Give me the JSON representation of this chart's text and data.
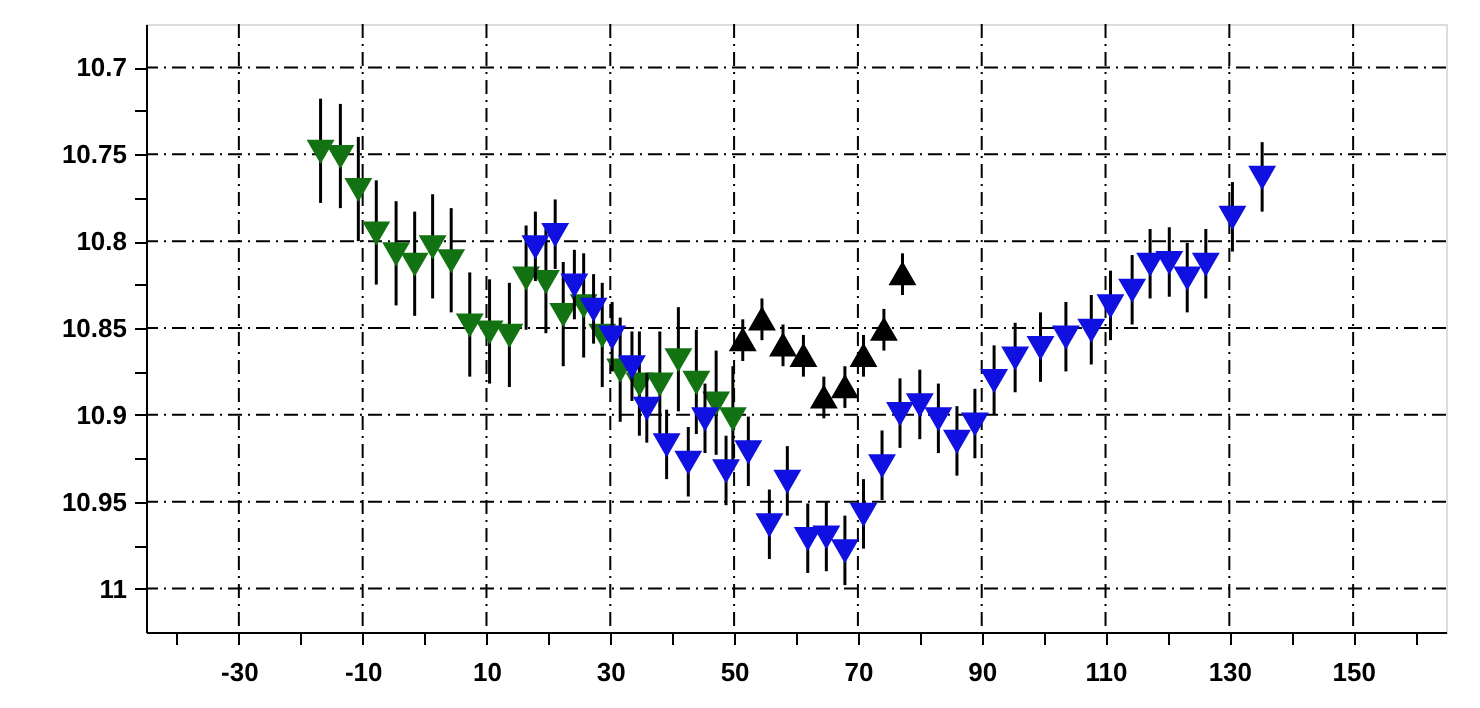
{
  "chart_data": {
    "type": "scatter",
    "xlim": [
      -45,
      165
    ],
    "xticks": [
      {
        "value": -40,
        "label": null
      },
      -30,
      {
        "value": -20,
        "label": null
      },
      -10,
      {
        "value": 0,
        "label": null
      },
      10,
      {
        "value": 20,
        "label": null
      },
      30,
      {
        "value": 40,
        "label": null
      },
      50,
      {
        "value": 60,
        "label": null
      },
      70,
      {
        "value": 80,
        "label": null
      },
      90,
      {
        "value": 100,
        "label": null
      },
      110,
      {
        "value": 120,
        "label": null
      },
      130,
      {
        "value": 140,
        "label": null
      },
      150,
      {
        "value": 160,
        "label": null
      }
    ],
    "ylim": [
      11.025,
      10.675
    ],
    "yticks": [
      10.7,
      {
        "value": 10.725,
        "label": null
      },
      10.75,
      {
        "value": 10.775,
        "label": null
      },
      10.8,
      {
        "value": 10.825,
        "label": null
      },
      10.85,
      {
        "value": 10.875,
        "label": null
      },
      10.9,
      {
        "value": 10.925,
        "label": null
      },
      10.95,
      {
        "value": 10.975,
        "label": null
      },
      11
    ],
    "grid": true,
    "series": [
      {
        "color": "#137313",
        "marker": "triangle-down",
        "x": [
          -16.8,
          -13.6,
          -10.7,
          -7.8,
          -4.6,
          -1.6,
          1.3,
          4.3,
          7.3,
          10.5,
          13.7,
          16.4,
          19.6,
          22.4,
          25.7,
          28.7,
          31.6,
          34.7,
          38.0,
          41.0,
          43.9,
          47.1,
          49.8
        ],
        "values": [
          10.748,
          10.751,
          10.77,
          10.795,
          10.807,
          10.813,
          10.803,
          10.811,
          10.848,
          10.852,
          10.854,
          10.821,
          10.823,
          10.842,
          10.837,
          10.854,
          10.874,
          10.882,
          10.882,
          10.868,
          10.881,
          10.893,
          10.902
        ],
        "errors": [
          0.03,
          0.03,
          0.03,
          0.03,
          0.03,
          0.03,
          0.03,
          0.03,
          0.03,
          0.03,
          0.03,
          0.03,
          0.03,
          0.03,
          0.03,
          0.03,
          0.03,
          0.03,
          0.03,
          0.03,
          0.03,
          0.03,
          0.03
        ]
      },
      {
        "color": "#1010e0",
        "marker": "triangle-down",
        "x": [
          17.9,
          21.1,
          24.2,
          27.3,
          30.3,
          33.5,
          35.9,
          39.1,
          42.6,
          45.3,
          48.7,
          52.3,
          55.7,
          58.6,
          61.9,
          64.9,
          67.9,
          70.9,
          73.9,
          76.8,
          80.0,
          83.0,
          86.0,
          88.9,
          92.0,
          95.4,
          99.5,
          103.6,
          107.7,
          110.8,
          114.3,
          117.2,
          120.3,
          123.2,
          126.2,
          130.5,
          135.3
        ],
        "values": [
          10.803,
          10.796,
          10.825,
          10.839,
          10.855,
          10.872,
          10.896,
          10.917,
          10.927,
          10.902,
          10.932,
          10.921,
          10.963,
          10.938,
          10.971,
          10.97,
          10.978,
          10.957,
          10.929,
          10.899,
          10.894,
          10.902,
          10.915,
          10.905,
          10.88,
          10.867,
          10.861,
          10.855,
          10.851,
          10.837,
          10.828,
          10.813,
          10.812,
          10.821,
          10.813,
          10.786,
          10.763
        ],
        "errors": [
          0.02,
          0.02,
          0.02,
          0.02,
          0.02,
          0.02,
          0.02,
          0.02,
          0.02,
          0.02,
          0.02,
          0.02,
          0.02,
          0.02,
          0.02,
          0.02,
          0.02,
          0.02,
          0.02,
          0.02,
          0.02,
          0.02,
          0.02,
          0.02,
          0.02,
          0.02,
          0.02,
          0.02,
          0.02,
          0.02,
          0.02,
          0.02,
          0.02,
          0.02,
          0.02,
          0.02,
          0.02
        ]
      },
      {
        "color": "#000000",
        "marker": "triangle",
        "x": [
          51.4,
          54.5,
          57.9,
          61.2,
          64.5,
          67.9,
          70.9,
          74.2,
          77.2
        ],
        "values": [
          10.857,
          10.845,
          10.86,
          10.866,
          10.89,
          10.884,
          10.866,
          10.851,
          10.819
        ],
        "errors": [
          0.012,
          0.012,
          0.012,
          0.012,
          0.012,
          0.012,
          0.012,
          0.012,
          0.012
        ]
      }
    ]
  }
}
